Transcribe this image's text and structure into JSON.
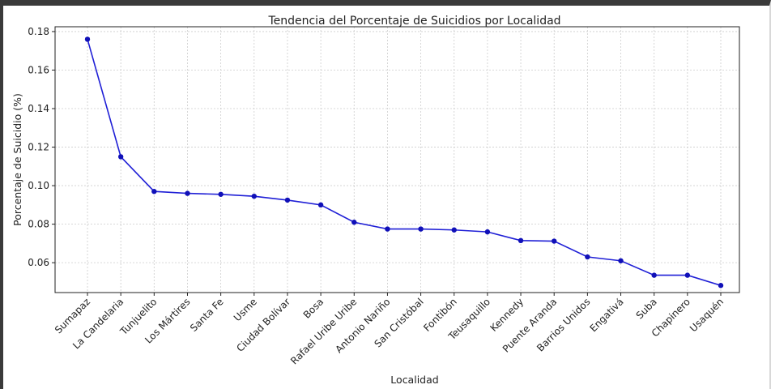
{
  "chart_data": {
    "type": "line",
    "title": "Tendencia del Porcentaje de Suicidios por Localidad",
    "xlabel": "Localidad",
    "ylabel": "Porcentaje de Suicidio (%)",
    "categories": [
      "Sumapaz",
      "La Candelaria",
      "Tunjuelito",
      "Los Mártires",
      "Santa Fe",
      "Usme",
      "Ciudad Bolívar",
      "Bosa",
      "Rafael Uribe Uribe",
      "Antonio Nariño",
      "San Cristóbal",
      "Fontibón",
      "Teusaquillo",
      "Kennedy",
      "Puente Aranda",
      "Barrios Unidos",
      "Engativá",
      "Suba",
      "Chapinero",
      "Usaquén"
    ],
    "values": [
      0.176,
      0.115,
      0.097,
      0.096,
      0.0955,
      0.0945,
      0.0925,
      0.09,
      0.081,
      0.0775,
      0.0775,
      0.077,
      0.076,
      0.0715,
      0.0712,
      0.063,
      0.061,
      0.0535,
      0.0535,
      0.0482
    ],
    "yticks": [
      0.06,
      0.08,
      0.1,
      0.12,
      0.14,
      0.16,
      0.18
    ],
    "ytick_labels": [
      "0.06",
      "0.08",
      "0.10",
      "0.12",
      "0.14",
      "0.16",
      "0.18"
    ],
    "ylim": [
      0.0445,
      0.1825
    ],
    "grid": true,
    "line_color": "#1f1fd6",
    "marker_color": "#1010b8"
  }
}
